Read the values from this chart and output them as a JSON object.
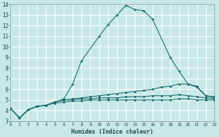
{
  "xlabel": "Humidex (Indice chaleur)",
  "xlim": [
    0,
    23
  ],
  "ylim": [
    3,
    14
  ],
  "yticks": [
    3,
    4,
    5,
    6,
    7,
    8,
    9,
    10,
    11,
    12,
    13,
    14
  ],
  "xticks": [
    0,
    1,
    2,
    3,
    4,
    5,
    6,
    7,
    8,
    9,
    10,
    11,
    12,
    13,
    14,
    15,
    16,
    17,
    18,
    19,
    20,
    21,
    22,
    23
  ],
  "bg_color": "#c8e8e8",
  "grid_color": "#ffffff",
  "line_color": "#1a6b6b",
  "lines": [
    {
      "x": [
        0,
        1,
        2,
        3,
        4,
        5,
        6,
        7,
        8,
        10,
        11,
        12,
        13,
        14,
        15,
        16,
        18,
        19,
        20,
        21,
        22,
        23
      ],
      "y": [
        4.2,
        3.3,
        4.1,
        4.4,
        4.5,
        4.8,
        5.1,
        6.5,
        8.7,
        11.0,
        12.1,
        13.0,
        13.9,
        13.5,
        13.4,
        12.6,
        9.0,
        7.7,
        6.5,
        6.3,
        5.4,
        5.3
      ]
    },
    {
      "x": [
        0,
        1,
        2,
        3,
        4,
        5,
        6,
        7,
        8,
        9,
        10,
        11,
        12,
        13,
        14,
        15,
        16,
        17,
        18,
        19,
        20,
        21,
        22,
        23
      ],
      "y": [
        4.2,
        3.3,
        4.1,
        4.4,
        4.5,
        4.8,
        5.0,
        5.1,
        5.2,
        5.3,
        5.4,
        5.5,
        5.6,
        5.7,
        5.8,
        5.9,
        6.0,
        6.2,
        6.3,
        6.5,
        6.5,
        6.2,
        5.4,
        5.2
      ]
    },
    {
      "x": [
        0,
        1,
        2,
        3,
        4,
        5,
        6,
        7,
        8,
        9,
        10,
        11,
        12,
        13,
        14,
        15,
        16,
        17,
        18,
        19,
        20,
        21,
        22,
        23
      ],
      "y": [
        4.2,
        3.3,
        4.1,
        4.4,
        4.5,
        4.8,
        5.0,
        5.0,
        5.1,
        5.1,
        5.2,
        5.2,
        5.2,
        5.3,
        5.3,
        5.3,
        5.4,
        5.4,
        5.4,
        5.5,
        5.4,
        5.3,
        5.2,
        5.1
      ]
    },
    {
      "x": [
        0,
        1,
        2,
        3,
        4,
        5,
        6,
        7,
        8,
        9,
        10,
        11,
        12,
        13,
        14,
        15,
        16,
        17,
        18,
        19,
        20,
        21,
        22,
        23
      ],
      "y": [
        4.2,
        3.3,
        4.1,
        4.4,
        4.5,
        4.7,
        4.8,
        4.9,
        4.9,
        5.0,
        5.0,
        5.0,
        5.0,
        5.0,
        5.0,
        5.0,
        5.0,
        5.0,
        5.0,
        5.1,
        5.1,
        5.0,
        5.0,
        5.0
      ]
    }
  ]
}
